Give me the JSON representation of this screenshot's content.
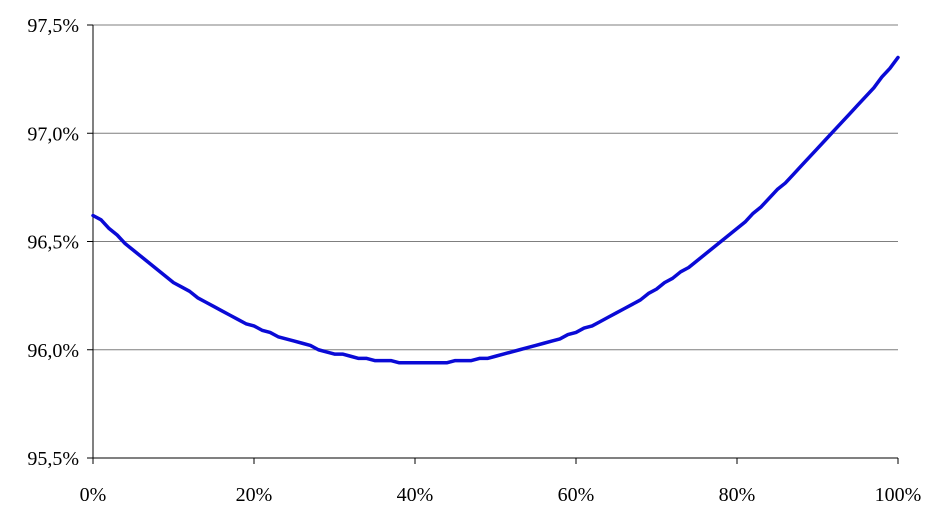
{
  "chart_data": {
    "type": "line",
    "title": "",
    "xlabel": "",
    "ylabel": "",
    "xlim": [
      0,
      100
    ],
    "ylim": [
      95.5,
      97.5
    ],
    "x_ticks": [
      0,
      20,
      40,
      60,
      80,
      100
    ],
    "x_tick_labels": [
      "0%",
      "20%",
      "40%",
      "60%",
      "80%",
      "100%"
    ],
    "y_ticks": [
      95.5,
      96.0,
      96.5,
      97.0,
      97.5
    ],
    "y_tick_labels": [
      "95,5%",
      "96,0%",
      "96,5%",
      "97,0%",
      "97,5%"
    ],
    "grid": "horizontal",
    "legend": "none",
    "colors": {
      "series": "#0a0ad6",
      "grid": "#7f7f7f",
      "axis": "#000000"
    },
    "series": [
      {
        "x": [
          0,
          1,
          2,
          3,
          4,
          5,
          6,
          7,
          8,
          9,
          10,
          11,
          12,
          13,
          14,
          15,
          16,
          17,
          18,
          19,
          20,
          21,
          22,
          23,
          24,
          25,
          26,
          27,
          28,
          29,
          30,
          31,
          32,
          33,
          34,
          35,
          36,
          37,
          38,
          39,
          40,
          41,
          42,
          43,
          44,
          45,
          46,
          47,
          48,
          49,
          50,
          51,
          52,
          53,
          54,
          55,
          56,
          57,
          58,
          59,
          60,
          61,
          62,
          63,
          64,
          65,
          66,
          67,
          68,
          69,
          70,
          71,
          72,
          73,
          74,
          75,
          76,
          77,
          78,
          79,
          80,
          81,
          82,
          83,
          84,
          85,
          86,
          87,
          88,
          89,
          90,
          91,
          92,
          93,
          94,
          95,
          96,
          97,
          98,
          99,
          100
        ],
        "values": [
          96.62,
          96.6,
          96.56,
          96.53,
          96.49,
          96.46,
          96.43,
          96.4,
          96.37,
          96.34,
          96.31,
          96.29,
          96.27,
          96.24,
          96.22,
          96.2,
          96.18,
          96.16,
          96.14,
          96.12,
          96.11,
          96.09,
          96.08,
          96.06,
          96.05,
          96.04,
          96.03,
          96.02,
          96.0,
          95.99,
          95.98,
          95.98,
          95.97,
          95.96,
          95.96,
          95.95,
          95.95,
          95.95,
          95.94,
          95.94,
          95.94,
          95.94,
          95.94,
          95.94,
          95.94,
          95.95,
          95.95,
          95.95,
          95.96,
          95.96,
          95.97,
          95.98,
          95.99,
          96.0,
          96.01,
          96.02,
          96.03,
          96.04,
          96.05,
          96.07,
          96.08,
          96.1,
          96.11,
          96.13,
          96.15,
          96.17,
          96.19,
          96.21,
          96.23,
          96.26,
          96.28,
          96.31,
          96.33,
          96.36,
          96.38,
          96.41,
          96.44,
          96.47,
          96.5,
          96.53,
          96.56,
          96.59,
          96.63,
          96.66,
          96.7,
          96.74,
          96.77,
          96.81,
          96.85,
          96.89,
          96.93,
          96.97,
          97.01,
          97.05,
          97.09,
          97.13,
          97.17,
          97.21,
          97.26,
          97.3,
          97.35
        ]
      }
    ]
  }
}
